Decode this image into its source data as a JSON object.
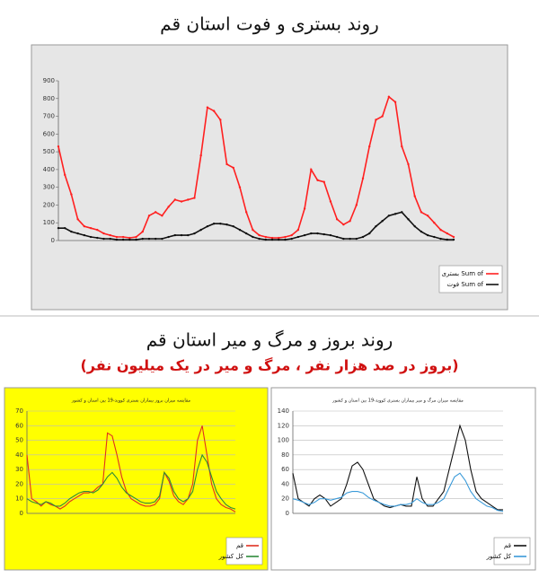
{
  "heading": "روند بروز و مرگ و میر استان قم",
  "subheading": "(بروز در صد هزار نفر ، مرگ و میر در یک میلیون نفر)",
  "chart_data": [
    {
      "type": "line",
      "title": "روند بستری و فوت استان قم",
      "ylim": [
        0,
        900
      ],
      "yticks": [
        0,
        100,
        200,
        300,
        400,
        500,
        600,
        700,
        800,
        900
      ],
      "grid": false,
      "legend": "lower right",
      "background": "#e6e6e6",
      "series": [
        {
          "name": "بستری Sum of",
          "color": "#ff2020",
          "values": [
            530,
            370,
            260,
            120,
            80,
            70,
            60,
            40,
            30,
            20,
            20,
            15,
            20,
            50,
            140,
            160,
            140,
            190,
            230,
            220,
            230,
            240,
            480,
            750,
            730,
            680,
            430,
            410,
            300,
            160,
            60,
            30,
            20,
            15,
            15,
            20,
            30,
            60,
            180,
            400,
            340,
            330,
            220,
            120,
            90,
            110,
            200,
            350,
            530,
            680,
            700,
            810,
            780,
            530,
            430,
            250,
            160,
            140,
            100,
            60,
            40,
            20
          ]
        },
        {
          "name": "فوت Sum of",
          "color": "#111111",
          "values": [
            70,
            70,
            50,
            40,
            30,
            20,
            15,
            10,
            10,
            5,
            5,
            5,
            5,
            10,
            10,
            10,
            10,
            20,
            30,
            30,
            30,
            40,
            60,
            80,
            95,
            95,
            90,
            80,
            60,
            40,
            20,
            10,
            5,
            5,
            5,
            5,
            10,
            20,
            30,
            40,
            40,
            35,
            30,
            20,
            10,
            10,
            10,
            20,
            40,
            80,
            110,
            140,
            150,
            160,
            120,
            80,
            50,
            30,
            20,
            10,
            5,
            5
          ]
        }
      ]
    },
    {
      "type": "line",
      "title": "مقایسه میزان بروز بیماران بستری کووید-19 بین استان و کشور",
      "ylim": [
        0,
        70
      ],
      "yticks": [
        0,
        10,
        20,
        30,
        40,
        50,
        60,
        70
      ],
      "grid": true,
      "legend": "lower right",
      "background": "#ffff00",
      "series": [
        {
          "name": "قم",
          "color": "#e03020",
          "values": [
            40,
            10,
            8,
            5,
            8,
            6,
            5,
            3,
            5,
            8,
            10,
            12,
            14,
            14,
            15,
            18,
            20,
            55,
            53,
            40,
            25,
            15,
            10,
            8,
            6,
            5,
            5,
            6,
            10,
            28,
            22,
            12,
            8,
            6,
            10,
            20,
            50,
            60,
            40,
            20,
            10,
            6,
            4,
            3,
            1
          ]
        },
        {
          "name": "کل کشور",
          "color": "#2e8b3a",
          "values": [
            10,
            8,
            7,
            6,
            8,
            7,
            5,
            5,
            7,
            10,
            12,
            14,
            15,
            15,
            14,
            16,
            20,
            25,
            28,
            24,
            18,
            14,
            12,
            10,
            8,
            7,
            7,
            8,
            12,
            28,
            24,
            15,
            10,
            8,
            10,
            15,
            30,
            40,
            35,
            25,
            15,
            10,
            6,
            4,
            3
          ]
        }
      ]
    },
    {
      "type": "line",
      "title": "مقایسه میزان مرگ و میر بیماران بستری کووید-19 بین استان و کشور",
      "ylim": [
        0,
        140
      ],
      "yticks": [
        0,
        20,
        40,
        60,
        80,
        100,
        120,
        140
      ],
      "grid": true,
      "legend": "lower right",
      "background": "#ffffff",
      "series": [
        {
          "name": "قم",
          "color": "#111111",
          "values": [
            55,
            20,
            15,
            10,
            20,
            25,
            20,
            10,
            15,
            20,
            40,
            65,
            70,
            60,
            40,
            20,
            15,
            10,
            8,
            10,
            12,
            10,
            10,
            50,
            20,
            10,
            10,
            20,
            30,
            60,
            90,
            120,
            100,
            60,
            30,
            20,
            15,
            10,
            5,
            5
          ]
        },
        {
          "name": "کل کشور",
          "color": "#3a9ad9",
          "values": [
            20,
            18,
            15,
            12,
            15,
            20,
            20,
            18,
            20,
            22,
            28,
            30,
            30,
            28,
            22,
            18,
            15,
            12,
            10,
            10,
            12,
            12,
            14,
            20,
            15,
            12,
            12,
            15,
            20,
            35,
            50,
            55,
            45,
            30,
            20,
            15,
            10,
            8,
            4,
            3
          ]
        }
      ]
    }
  ]
}
